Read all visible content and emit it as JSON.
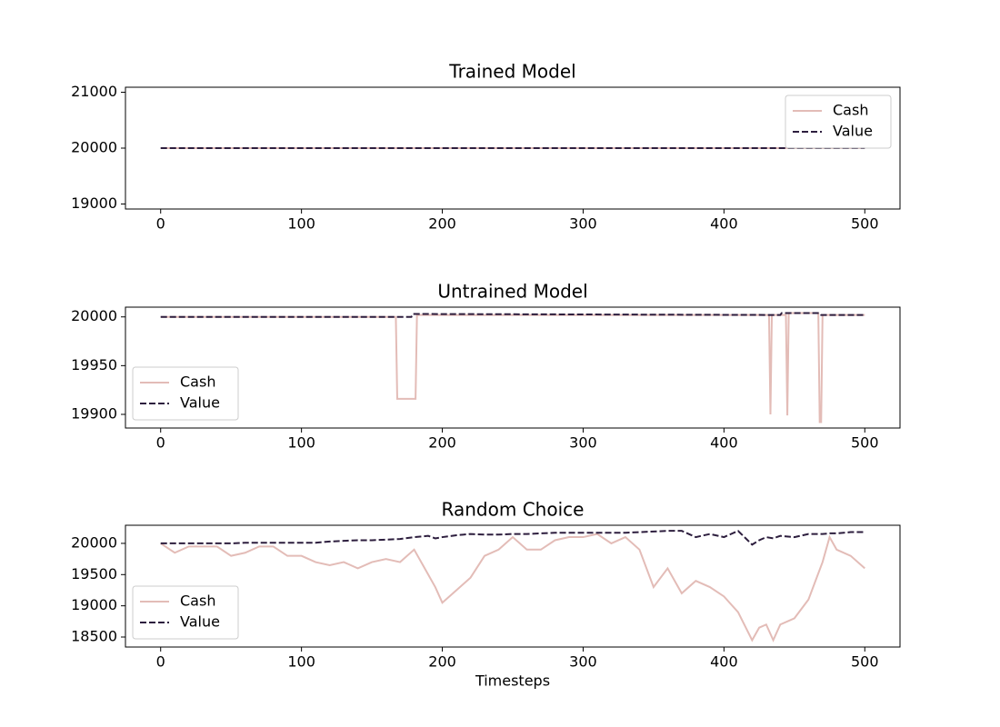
{
  "chart_data": [
    {
      "type": "line",
      "title": "Trained Model",
      "x": [
        0,
        500
      ],
      "series": [
        {
          "name": "Cash",
          "color": "#e3bcb7",
          "linestyle": "solid",
          "values": [
            20000,
            20000
          ]
        },
        {
          "name": "Value",
          "color": "#2d1e3e",
          "linestyle": "dashed",
          "values": [
            20000,
            20000
          ]
        }
      ],
      "xlim": [
        -25,
        525
      ],
      "xticks": [
        0,
        100,
        200,
        300,
        400,
        500
      ],
      "ylim": [
        18910,
        21090
      ],
      "yticks": [
        19000,
        20000,
        21000
      ],
      "legend": "upper right",
      "grid": false
    },
    {
      "type": "line",
      "title": "Untrained Model",
      "x": [
        0,
        167,
        168,
        178,
        179,
        181,
        182,
        432,
        433,
        434,
        440,
        441,
        444,
        445,
        446,
        467,
        468,
        469,
        470,
        500
      ],
      "series": [
        {
          "name": "Cash",
          "color": "#e3bcb7",
          "linestyle": "solid",
          "values": [
            20000,
            20000,
            19916,
            19916,
            19916,
            19916,
            20002,
            20002,
            19900,
            20002,
            20002,
            20002,
            20002,
            19899,
            20004,
            20004,
            19892,
            19892,
            20002,
            20002
          ]
        },
        {
          "name": "Value",
          "color": "#2d1e3e",
          "linestyle": "dashed",
          "values": [
            20000,
            20000,
            20000,
            20000,
            20003,
            20003,
            20003,
            20002,
            20002,
            20002,
            20002,
            20004,
            20004,
            20004,
            20004,
            20004,
            20004,
            20002,
            20002,
            20002
          ]
        }
      ],
      "xlim": [
        -25,
        525
      ],
      "xticks": [
        0,
        100,
        200,
        300,
        400,
        500
      ],
      "ylim": [
        19886,
        20010
      ],
      "yticks": [
        19900,
        19950,
        20000
      ],
      "legend": "lower left",
      "grid": false
    },
    {
      "type": "line",
      "title": "Random Choice",
      "xlabel": "Timesteps",
      "x": [
        0,
        10,
        20,
        30,
        40,
        50,
        60,
        70,
        80,
        90,
        100,
        110,
        120,
        130,
        140,
        150,
        160,
        170,
        180,
        190,
        195,
        200,
        210,
        220,
        230,
        240,
        250,
        260,
        270,
        280,
        290,
        300,
        310,
        320,
        330,
        340,
        350,
        360,
        370,
        380,
        390,
        400,
        410,
        420,
        425,
        430,
        435,
        440,
        450,
        460,
        470,
        475,
        480,
        490,
        500
      ],
      "series": [
        {
          "name": "Cash",
          "color": "#e3bcb7",
          "linestyle": "solid",
          "values": [
            20000,
            19850,
            19950,
            19950,
            19950,
            19800,
            19850,
            19950,
            19950,
            19800,
            19800,
            19700,
            19650,
            19700,
            19600,
            19700,
            19750,
            19700,
            19900,
            19500,
            19300,
            19050,
            19250,
            19450,
            19800,
            19900,
            20100,
            19900,
            19900,
            20050,
            20100,
            20100,
            20150,
            20000,
            20100,
            19900,
            19300,
            19600,
            19200,
            19400,
            19300,
            19150,
            18900,
            18450,
            18650,
            18700,
            18450,
            18700,
            18800,
            19100,
            19700,
            20100,
            19900,
            19800,
            19600
          ]
        },
        {
          "name": "Value",
          "color": "#2d1e3e",
          "linestyle": "dashed",
          "values": [
            20000,
            20000,
            20000,
            20000,
            20000,
            20000,
            20010,
            20010,
            20010,
            20010,
            20010,
            20010,
            20030,
            20040,
            20050,
            20050,
            20060,
            20070,
            20100,
            20120,
            20080,
            20100,
            20130,
            20150,
            20140,
            20140,
            20150,
            20150,
            20160,
            20170,
            20170,
            20170,
            20170,
            20170,
            20170,
            20180,
            20190,
            20200,
            20200,
            20100,
            20150,
            20100,
            20200,
            19980,
            20050,
            20100,
            20080,
            20120,
            20100,
            20150,
            20150,
            20160,
            20160,
            20180,
            20180
          ]
        }
      ],
      "xlim": [
        -25,
        525
      ],
      "xticks": [
        0,
        100,
        200,
        300,
        400,
        500
      ],
      "ylim": [
        18340,
        20290
      ],
      "yticks": [
        18500,
        19000,
        19500,
        20000
      ],
      "legend": "lower left",
      "grid": false
    }
  ]
}
